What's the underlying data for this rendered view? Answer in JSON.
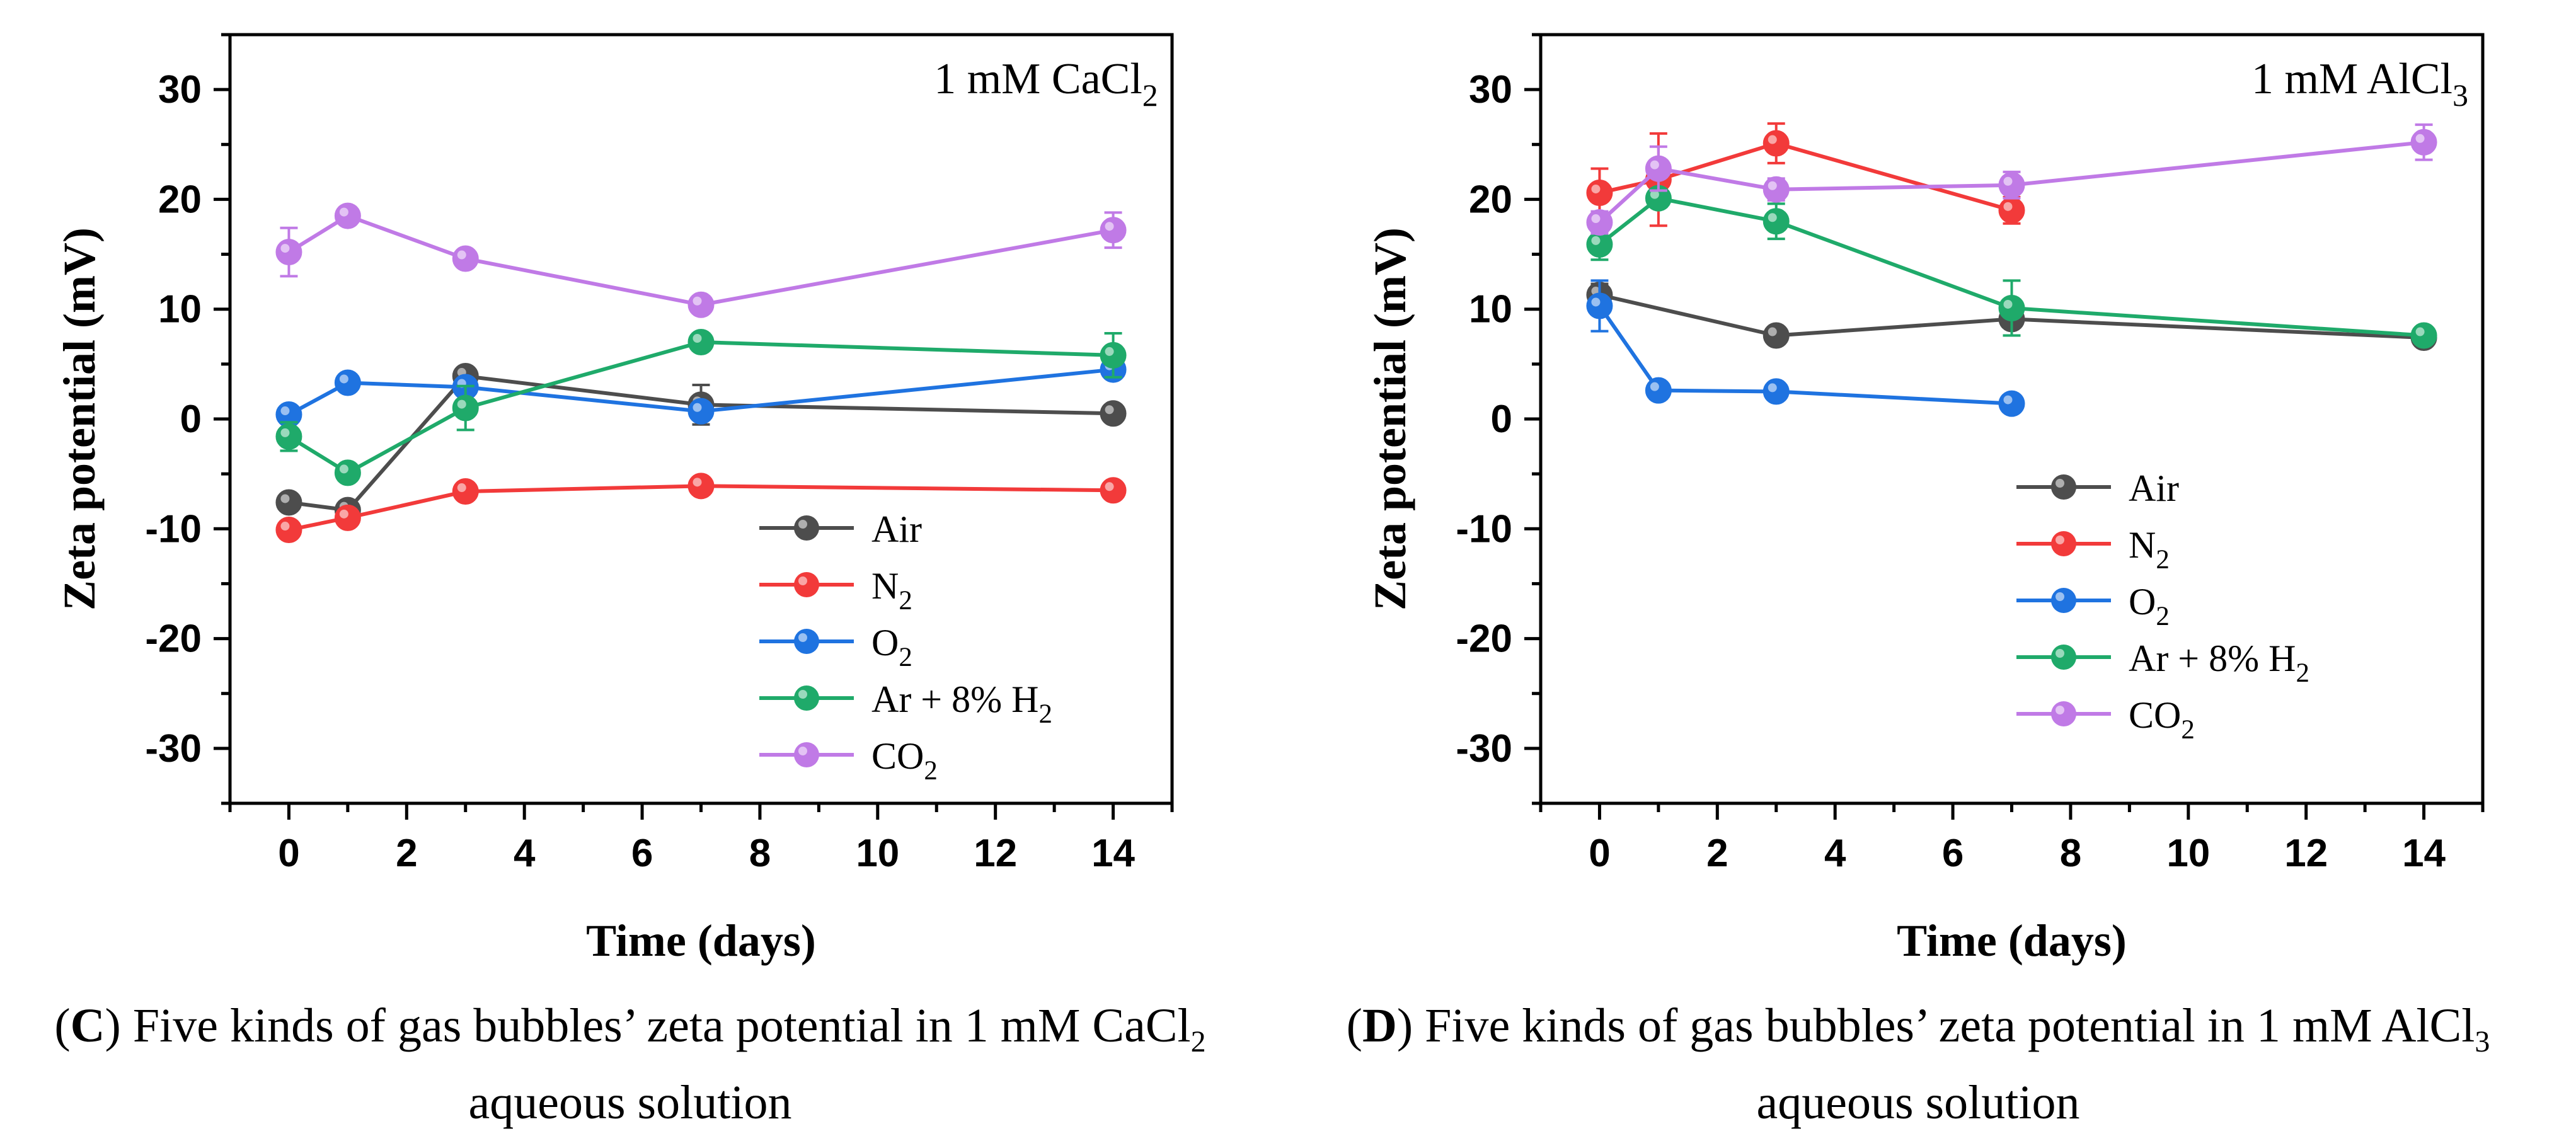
{
  "colors": {
    "air": "#4d4d4d",
    "n2": "#f23a3a",
    "o2": "#1f73e0",
    "arh2": "#1faa6a",
    "co2": "#c07ae6"
  },
  "captions": {
    "c": {
      "letter": "C",
      "text": "Five kinds of gas bubbles’ zeta potential in 1 mM CaCl",
      "sub": "2",
      "line2": "aqueous solution"
    },
    "d": {
      "letter": "D",
      "text": "Five kinds of gas bubbles’ zeta potential in 1 mM AlCl",
      "sub": "3",
      "line2": "aqueous solution"
    }
  },
  "chart_data": [
    {
      "type": "line",
      "panel": "C",
      "annotation": {
        "text": "1 mM CaCl",
        "sub": "2"
      },
      "xlabel": "Time (days)",
      "ylabel": "Zeta potential (mV)",
      "xlim": [
        -1,
        15
      ],
      "ylim": [
        -35,
        35
      ],
      "xticks": [
        0,
        2,
        4,
        6,
        8,
        10,
        12,
        14
      ],
      "yticks": [
        -30,
        -20,
        -10,
        0,
        10,
        20,
        30
      ],
      "legend_position": "lower-right",
      "series": [
        {
          "key": "air",
          "name": "Air",
          "sub": "",
          "x": [
            0,
            1,
            3,
            7,
            14
          ],
          "y": [
            -7.6,
            -8.3,
            3.9,
            1.3,
            0.5
          ],
          "err": [
            0.5,
            0.5,
            0.5,
            1.8,
            0.3
          ]
        },
        {
          "key": "n2",
          "name": "N",
          "sub": "2",
          "x": [
            0,
            1,
            3,
            7,
            14
          ],
          "y": [
            -10.1,
            -9.0,
            -6.6,
            -6.1,
            -6.5
          ],
          "err": [
            0.4,
            0.4,
            0.4,
            0.4,
            0.4
          ]
        },
        {
          "key": "o2",
          "name": "O",
          "sub": "2",
          "x": [
            0,
            1,
            3,
            7,
            14
          ],
          "y": [
            0.4,
            3.3,
            2.9,
            0.7,
            4.5
          ],
          "err": [
            0.4,
            0.4,
            0.4,
            0.4,
            0.4
          ]
        },
        {
          "key": "arh2",
          "name": "Ar + 8% H",
          "sub": "2",
          "x": [
            0,
            1,
            3,
            7,
            14
          ],
          "y": [
            -1.6,
            -4.9,
            1.0,
            7.0,
            5.8
          ],
          "err": [
            1.3,
            0.5,
            2.0,
            0.5,
            2.0
          ]
        },
        {
          "key": "co2",
          "name": "CO",
          "sub": "2",
          "x": [
            0,
            1,
            3,
            7,
            14
          ],
          "y": [
            15.2,
            18.5,
            14.6,
            10.4,
            17.2
          ],
          "err": [
            2.2,
            0.8,
            0.6,
            0.6,
            1.6
          ]
        }
      ]
    },
    {
      "type": "line",
      "panel": "D",
      "annotation": {
        "text": "1 mM AlCl",
        "sub": "3"
      },
      "xlabel": "Time (days)",
      "ylabel": "Zeta potential (mV)",
      "xlim": [
        -1,
        15
      ],
      "ylim": [
        -35,
        35
      ],
      "xticks": [
        0,
        2,
        4,
        6,
        8,
        10,
        12,
        14
      ],
      "yticks": [
        -30,
        -20,
        -10,
        0,
        10,
        20,
        30
      ],
      "legend_position": "center-left",
      "series": [
        {
          "key": "air",
          "name": "Air",
          "sub": "",
          "x": [
            0,
            3,
            7,
            14
          ],
          "y": [
            11.3,
            7.6,
            9.1,
            7.4
          ],
          "err": [
            1.0,
            0.4,
            1.5,
            0.4
          ]
        },
        {
          "key": "n2",
          "name": "N",
          "sub": "2",
          "x": [
            0,
            1,
            3,
            7
          ],
          "y": [
            20.6,
            21.8,
            25.1,
            19.0
          ],
          "err": [
            2.2,
            4.2,
            1.8,
            1.2
          ]
        },
        {
          "key": "o2",
          "name": "O",
          "sub": "2",
          "x": [
            0,
            1,
            3,
            7
          ],
          "y": [
            10.3,
            2.6,
            2.5,
            1.4
          ],
          "err": [
            2.3,
            0.4,
            0.4,
            0.4
          ]
        },
        {
          "key": "arh2",
          "name": "Ar + 8% H",
          "sub": "2",
          "x": [
            0,
            1,
            3,
            7,
            14
          ],
          "y": [
            15.9,
            20.1,
            18.0,
            10.1,
            7.6
          ],
          "err": [
            1.4,
            0.8,
            1.6,
            2.5,
            0.5
          ]
        },
        {
          "key": "co2",
          "name": "CO",
          "sub": "2",
          "x": [
            0,
            1,
            3,
            7,
            14
          ],
          "y": [
            17.9,
            22.8,
            20.9,
            21.3,
            25.2
          ],
          "err": [
            1.0,
            2.0,
            1.0,
            1.2,
            1.6
          ]
        }
      ]
    }
  ]
}
